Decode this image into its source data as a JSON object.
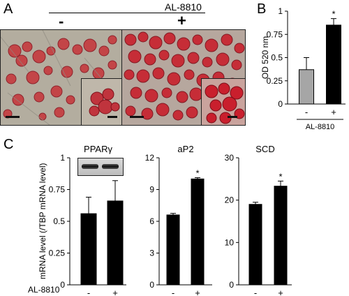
{
  "panel_letters": {
    "a": "A",
    "b": "B",
    "c": "C"
  },
  "panel_a": {
    "treatment_label": "AL-8810",
    "minus_sign": "-",
    "plus_sign": "+"
  },
  "chart_data": [
    {
      "type": "bar",
      "panel": "B",
      "categories": [
        "-",
        "+"
      ],
      "values": [
        0.37,
        0.85
      ],
      "errors": [
        0.13,
        0.07
      ],
      "bar_colors": [
        "#a6a6a6",
        "#000000"
      ],
      "significance": [
        "",
        "*"
      ],
      "ylabel": "OD 520 nm",
      "yticks": [
        0,
        0.25,
        0.5,
        0.75,
        1
      ],
      "ytick_labels": [
        "0",
        "0.25",
        "0.5",
        "0.75",
        "1"
      ],
      "ylim": [
        0,
        1
      ],
      "xgroup_label": "AL-8810"
    },
    {
      "type": "bar",
      "panel": "C",
      "title": "PPARγ",
      "categories": [
        "-",
        "+"
      ],
      "values": [
        0.56,
        0.66
      ],
      "errors": [
        0.13,
        0.16
      ],
      "bar_colors": [
        "#000000",
        "#000000"
      ],
      "significance": [
        "",
        ""
      ],
      "yticks": [
        0,
        0.25,
        0.5,
        0.75,
        1
      ],
      "ytick_labels": [
        "0",
        "0.25",
        "0.5",
        "0.75",
        "1"
      ],
      "ylim": [
        0,
        1
      ]
    },
    {
      "type": "bar",
      "panel": "C",
      "title": "aP2",
      "categories": [
        "-",
        "+"
      ],
      "values": [
        6.6,
        10.0
      ],
      "errors": [
        0.15,
        0.12
      ],
      "bar_colors": [
        "#000000",
        "#000000"
      ],
      "significance": [
        "",
        "*"
      ],
      "yticks": [
        0,
        3,
        6,
        9,
        12
      ],
      "ytick_labels": [
        "0",
        "3",
        "6",
        "9",
        "12"
      ],
      "ylim": [
        0,
        12
      ]
    },
    {
      "type": "bar",
      "panel": "C",
      "title": "SCD",
      "categories": [
        "-",
        "+"
      ],
      "values": [
        19.0,
        23.3
      ],
      "errors": [
        0.5,
        1.2
      ],
      "bar_colors": [
        "#000000",
        "#000000"
      ],
      "significance": [
        "",
        "*"
      ],
      "yticks": [
        0,
        10,
        20,
        30
      ],
      "ytick_labels": [
        "0",
        "10",
        "20",
        "30"
      ],
      "ylim": [
        0,
        30
      ]
    }
  ],
  "panel_c": {
    "ylabel": "mRNA level  (/TBP mRNA level)",
    "row_label": "AL-8810"
  },
  "colors": {
    "stain_red": "#c21d2b",
    "background_gray": "#b7b0a4"
  }
}
